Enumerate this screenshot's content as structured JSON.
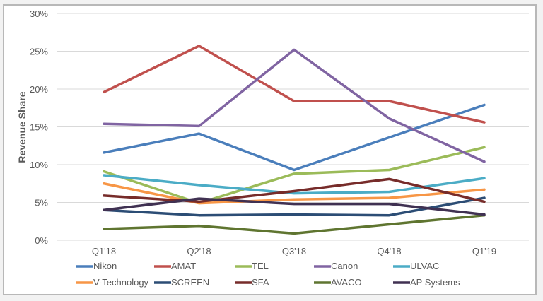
{
  "chart_data": {
    "type": "line",
    "title": "",
    "xlabel": "",
    "ylabel": "Revenue Share",
    "ylim": [
      0,
      30
    ],
    "yticks": [
      0,
      5,
      10,
      15,
      20,
      25,
      30
    ],
    "ytick_labels": [
      "0%",
      "5%",
      "10%",
      "15%",
      "20%",
      "25%",
      "30%"
    ],
    "grid": true,
    "legend_position": "bottom",
    "categories": [
      "Q1'18",
      "Q2'18",
      "Q3'18",
      "Q4'18",
      "Q1'19"
    ],
    "series": [
      {
        "name": "Nikon",
        "color": "#4a7ebb",
        "values": [
          11.6,
          14.1,
          9.3,
          13.6,
          17.9
        ]
      },
      {
        "name": "AMAT",
        "color": "#c0504d",
        "values": [
          19.6,
          25.7,
          18.4,
          18.4,
          15.6
        ]
      },
      {
        "name": "TEL",
        "color": "#9bbb59",
        "values": [
          9.1,
          4.9,
          8.8,
          9.3,
          12.3
        ]
      },
      {
        "name": "Canon",
        "color": "#8064a2",
        "values": [
          15.4,
          15.1,
          25.2,
          16.1,
          10.4
        ]
      },
      {
        "name": "ULVAC",
        "color": "#4bacc6",
        "values": [
          8.6,
          7.3,
          6.2,
          6.4,
          8.2
        ]
      },
      {
        "name": "V-Technology",
        "color": "#f79646",
        "values": [
          7.5,
          4.9,
          5.4,
          5.6,
          6.7
        ]
      },
      {
        "name": "SCREEN",
        "color": "#2c4d75",
        "values": [
          4.0,
          3.3,
          3.4,
          3.3,
          5.6
        ]
      },
      {
        "name": "SFA",
        "color": "#772c2a",
        "values": [
          5.9,
          5.1,
          6.5,
          8.1,
          5.1
        ]
      },
      {
        "name": "AVACO",
        "color": "#5f7530",
        "values": [
          1.5,
          1.9,
          0.9,
          2.1,
          3.3
        ]
      },
      {
        "name": "AP Systems",
        "color": "#403152",
        "values": [
          4.0,
          5.5,
          4.8,
          4.8,
          3.4
        ]
      }
    ]
  }
}
